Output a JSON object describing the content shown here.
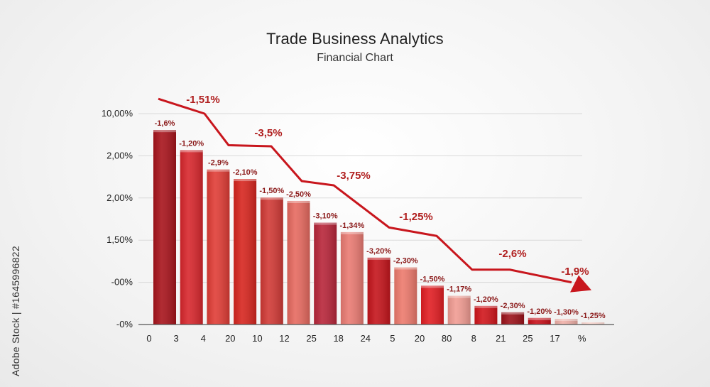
{
  "chart_data": {
    "type": "bar",
    "title": "Trade Business Analytics",
    "subtitle": "Financial Chart",
    "y_tick_labels": [
      "10,00%",
      "2,00%",
      "2,00%",
      "1,50%",
      "-00%",
      "-0%"
    ],
    "x_tick_labels": [
      "0",
      "3",
      "4",
      "20",
      "10",
      "12",
      "25",
      "18",
      "24",
      "5",
      "20",
      "80",
      "8",
      "21",
      "25",
      "17",
      "%"
    ],
    "bar_relative_heights": [
      0.922,
      0.827,
      0.735,
      0.69,
      0.602,
      0.586,
      0.483,
      0.438,
      0.317,
      0.271,
      0.184,
      0.136,
      0.088,
      0.058,
      0.031,
      0.027,
      0.007
    ],
    "bar_labels": [
      "-1,6%",
      "-1,20%",
      "-2,9%",
      "-2,10%",
      "-1,50%",
      "-2,50%",
      "-3,10%",
      "-1,34%",
      "-3,20%",
      "-2,30%",
      "-1,50%",
      "-1,17%",
      "-1,20%",
      "-2,30%",
      "-1,20%",
      "-1,30%",
      "-1,25%"
    ],
    "bar_colors": [
      "#a8141c",
      "#d8272d",
      "#e03d36",
      "#d7261f",
      "#d13a36",
      "#e66a60",
      "#b8263a",
      "#ea7b73",
      "#c5151c",
      "#ed7a6d",
      "#e21e23",
      "#f19c93",
      "#d1161c",
      "#9c121a",
      "#c8101a",
      "#f0b0a8",
      "#f7c0b5"
    ],
    "trend_line": {
      "relative_levels": [
        1.07,
        1.0,
        0.85,
        0.845,
        0.68,
        0.66,
        0.46,
        0.42,
        0.26,
        0.26,
        0.2
      ],
      "labels": [
        "-1,51%",
        "-3,5%",
        "-3,75%",
        "-1,25%",
        "-2,6%",
        "-1,9%"
      ],
      "color": "#c8161d"
    },
    "grid": true
  },
  "side_credit": "Adobe Stock | #1645996822"
}
